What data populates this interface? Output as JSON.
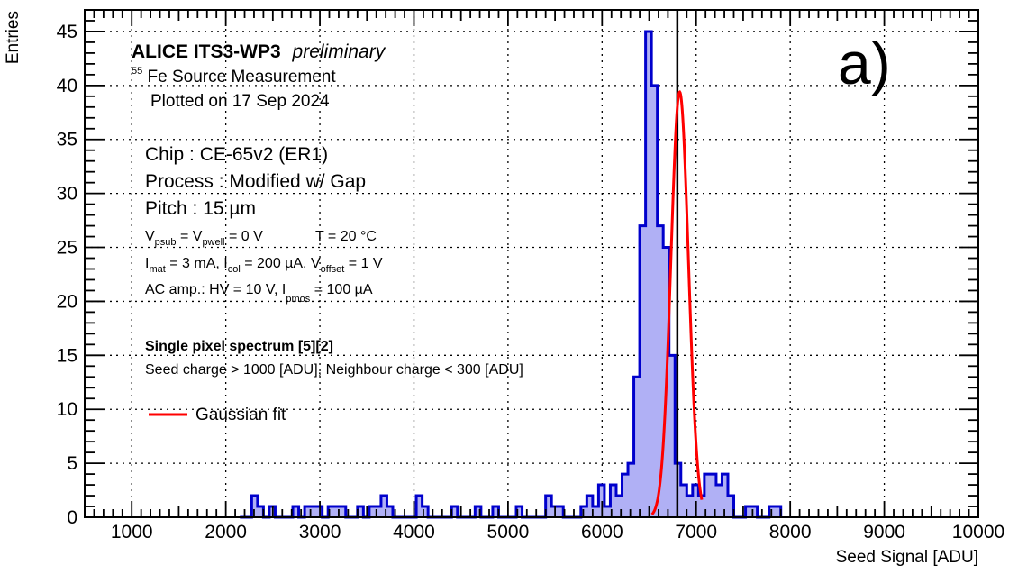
{
  "chart_data": {
    "type": "histogram",
    "xlabel": "Seed Signal [ADU]",
    "ylabel": "Entries",
    "xlim": [
      500,
      10000
    ],
    "ylim": [
      0,
      47
    ],
    "grid": true,
    "x_ticks": [
      1000,
      2000,
      3000,
      4000,
      5000,
      6000,
      7000,
      8000,
      9000,
      10000
    ],
    "y_ticks": [
      0,
      5,
      10,
      15,
      20,
      25,
      30,
      35,
      40,
      45
    ],
    "x_tick_labels": [
      "1000",
      "2000",
      "3000",
      "4000",
      "5000",
      "6000",
      "7000",
      "8000",
      "9000",
      "10000"
    ],
    "y_tick_labels": [
      "0",
      "5",
      "10",
      "15",
      "20",
      "25",
      "30",
      "35",
      "40",
      "45"
    ],
    "bin_start": 2150,
    "bin_width": 62.5,
    "counts": [
      0,
      0,
      2,
      1,
      0,
      1,
      0,
      0,
      0,
      1,
      0,
      1,
      1,
      1,
      0,
      1,
      1,
      1,
      0,
      0,
      1,
      0,
      1,
      1,
      2,
      1,
      0,
      0,
      0,
      0,
      2,
      1,
      0,
      0,
      0,
      0,
      1,
      0,
      0,
      0,
      1,
      0,
      0,
      1,
      0,
      0,
      0,
      1,
      0,
      0,
      0,
      0,
      2,
      1,
      1,
      0,
      0,
      0,
      1,
      2,
      1,
      3,
      1,
      3,
      2,
      4,
      5,
      13,
      27,
      45,
      40,
      27,
      25,
      15,
      5,
      3,
      2,
      3,
      2,
      4,
      4,
      3,
      4,
      2,
      0,
      0,
      1,
      1,
      0,
      0,
      1,
      1
    ],
    "fit": {
      "label": "Gaussian fit",
      "color": "#ff0000",
      "amplitude": 39.4,
      "mean": 6825,
      "sigma": 93,
      "range": [
        6530,
        7060
      ]
    },
    "mean_line_x": 6800,
    "histogram_color": "#0000cc",
    "fill_color": "#b0b0f5",
    "grid_color": "#000000"
  },
  "annotations": {
    "experiment": "ALICE ITS3-WP3",
    "status": "preliminary",
    "source_superscript": "55",
    "source_text": "Fe Source Measurement",
    "plotted_on": "Plotted on 17 Sep 2024",
    "panel_label": "a)",
    "chip": "Chip : CE-65v2 (ER1)",
    "process": "Process : Modified w/ Gap",
    "pitch": "Pitch : 15 µm",
    "v_label": "V",
    "v_psub_sub": "psub",
    "v_eq": " = V",
    "v_pwell_sub": "pwell",
    "v_value": " = 0 V",
    "temperature": "T = 20 °C",
    "i_label": "I",
    "i_mat_sub": "mat",
    "i_mat_value": " = 3 mA, I",
    "i_col_sub": "col",
    "i_col_value": " = 200 µA, V",
    "v_offset_sub": "offset",
    "v_offset_value": " = 1 V",
    "ac_amp": "AC amp.: HV = 10 V, I",
    "i_pmos_sub": "pmos",
    "i_pmos_value": " = 100 µA",
    "spectrum": "Single pixel spectrum [5][2]",
    "cuts": "Seed charge > 1000 [ADU], Neighbour charge < 300 [ADU]"
  }
}
